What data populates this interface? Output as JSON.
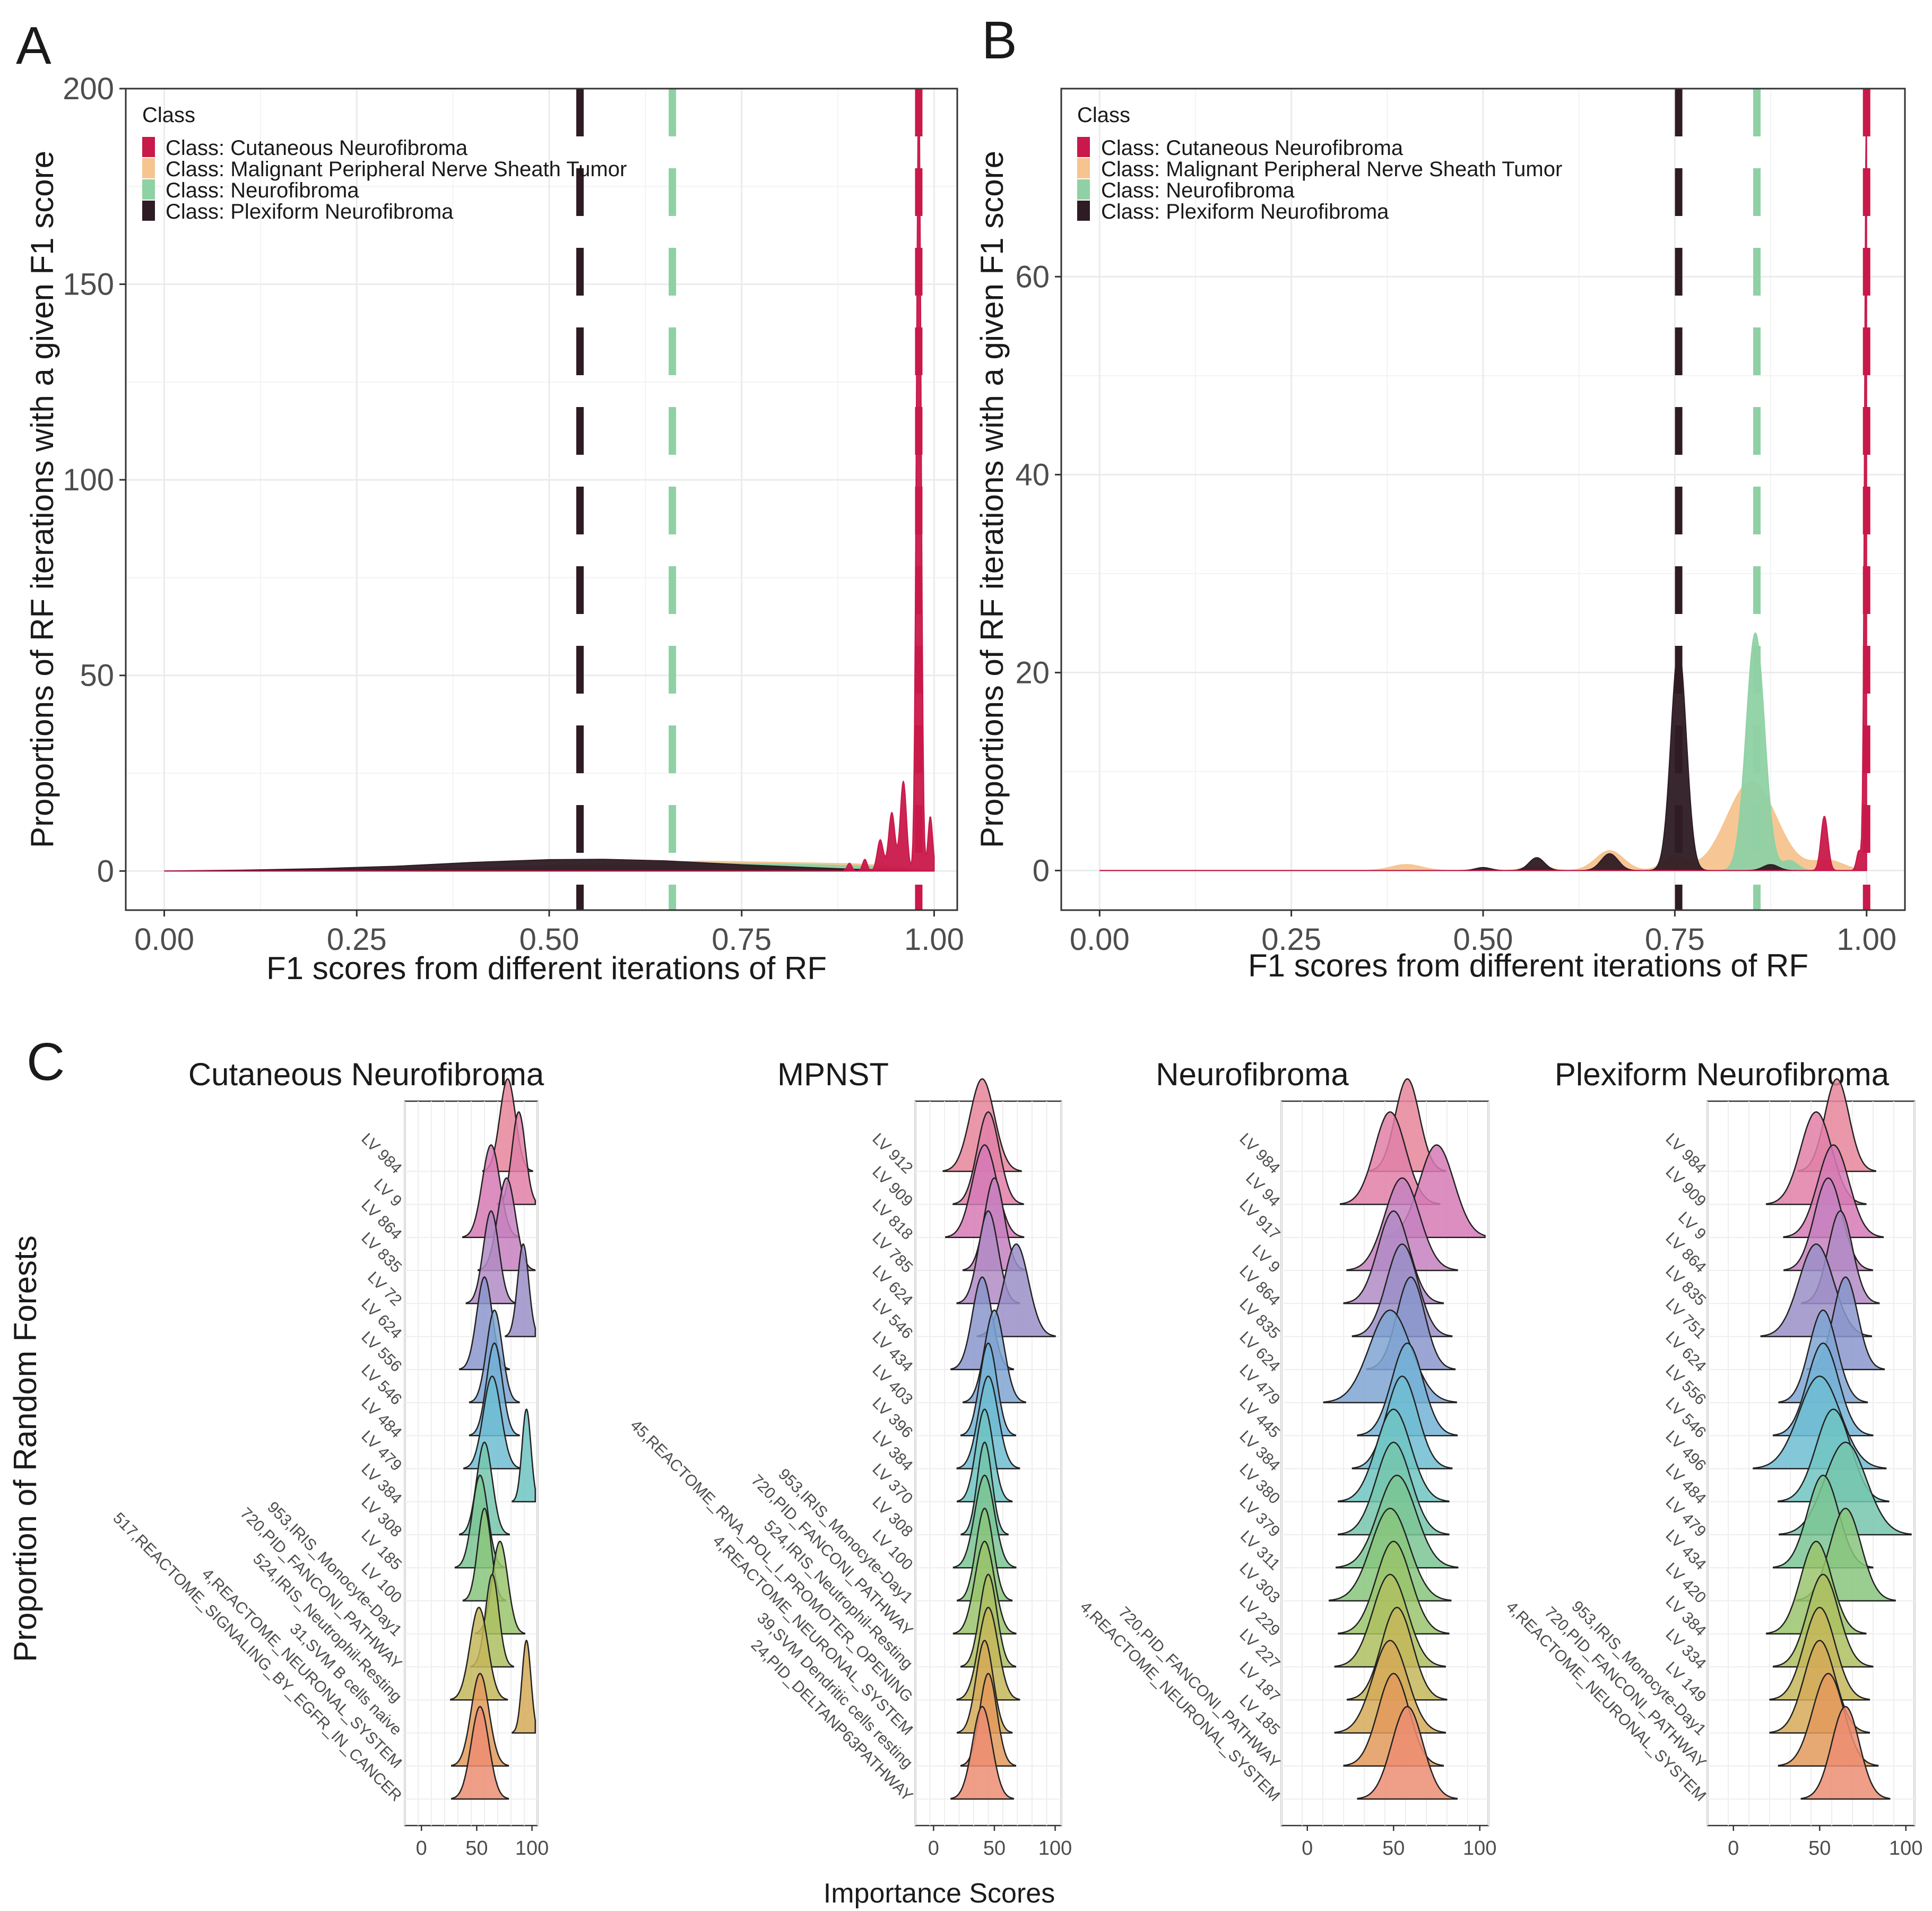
{
  "panel_labels": {
    "a": "A",
    "b": "B",
    "c": "C"
  },
  "colors": {
    "cutaneous": "#c9184a",
    "mpnst": "#f5c48f",
    "neurofibroma": "#8fd1a4",
    "plexiform": "#2e1b24",
    "grid": "#ebebeb",
    "axis_text": "#4d4d4d"
  },
  "panel_c": {
    "y_label": "Proportion of Random Forests",
    "x_label": "Importance Scores"
  },
  "chart_data": [
    {
      "id": "A",
      "type": "area",
      "title": "",
      "xlabel": "F1 scores from different iterations of RF",
      "ylabel": "Proportions of RF iterations with a given F1 score",
      "xlim": [
        -0.05,
        1.03
      ],
      "ylim": [
        -10,
        200
      ],
      "x_ticks": [
        "0.00",
        "0.25",
        "0.50",
        "0.75",
        "1.00"
      ],
      "x_tick_values": [
        0,
        0.25,
        0.5,
        0.75,
        1.0
      ],
      "y_ticks": [
        "0",
        "50",
        "100",
        "150",
        "200"
      ],
      "y_tick_values": [
        0,
        50,
        100,
        150,
        200
      ],
      "legend": {
        "title": "Class",
        "position": "top-left",
        "entries": [
          "Class: Cutaneous Neurofibroma",
          "Class: Malignant Peripheral Nerve Sheath Tumor",
          "Class: Neurofibroma",
          "Class: Plexiform Neurofibroma"
        ]
      },
      "series": [
        {
          "name": "Class: Malignant Peripheral Nerve Sheath Tumor",
          "color_key": "mpnst",
          "x": [
            0.0,
            0.2,
            0.4,
            0.55,
            0.7,
            0.8,
            0.9,
            0.95,
            1.0
          ],
          "y": [
            0,
            0.2,
            0.8,
            1.8,
            2.5,
            2.2,
            1.8,
            1.2,
            0
          ]
        },
        {
          "name": "Class: Neurofibroma",
          "color_key": "neurofibroma",
          "x": [
            0.0,
            0.2,
            0.4,
            0.55,
            0.7,
            0.8,
            0.9,
            0.95,
            1.0
          ],
          "y": [
            0,
            0.2,
            0.8,
            1.5,
            2.0,
            1.8,
            1.3,
            0.8,
            0
          ]
        },
        {
          "name": "Class: Plexiform Neurofibroma",
          "color_key": "plexiform",
          "x": [
            0.0,
            0.1,
            0.2,
            0.3,
            0.4,
            0.5,
            0.57,
            0.65,
            0.75,
            0.85,
            0.9,
            0.95,
            1.0
          ],
          "y": [
            0,
            0.2,
            0.6,
            1.2,
            2.2,
            2.9,
            3.0,
            2.6,
            1.6,
            0.8,
            0.4,
            0.2,
            0
          ]
        },
        {
          "name": "Class: Cutaneous Neurofibroma",
          "color_key": "cutaneous",
          "peaks": [
            [
              0.89,
              2,
              0.003
            ],
            [
              0.91,
              3,
              0.003
            ],
            [
              0.93,
              8,
              0.004
            ],
            [
              0.945,
              15,
              0.004
            ],
            [
              0.96,
              23,
              0.004
            ],
            [
              0.98,
              200,
              0.003
            ],
            [
              0.995,
              14,
              0.003
            ]
          ]
        }
      ],
      "vlines": [
        {
          "x": 0.54,
          "color_key": "plexiform"
        },
        {
          "x": 0.66,
          "color_key": "neurofibroma"
        },
        {
          "x": 0.98,
          "color_key": "cutaneous"
        }
      ]
    },
    {
      "id": "B",
      "type": "area",
      "title": "",
      "xlabel": "F1 scores from different iterations of RF",
      "ylabel": "Proportions of RF iterations with a given F1 score",
      "xlim": [
        -0.05,
        1.05
      ],
      "ylim": [
        -4,
        79
      ],
      "x_ticks": [
        "0.00",
        "0.25",
        "0.50",
        "0.75",
        "1.00"
      ],
      "x_tick_values": [
        0,
        0.25,
        0.5,
        0.75,
        1.0
      ],
      "y_ticks": [
        "0",
        "20",
        "40",
        "60"
      ],
      "y_tick_values": [
        0,
        20,
        40,
        60
      ],
      "legend": {
        "title": "Class",
        "position": "top-left",
        "entries": [
          "Class: Cutaneous Neurofibroma",
          "Class: Malignant Peripheral Nerve Sheath Tumor",
          "Class: Neurofibroma",
          "Class: Plexiform Neurofibroma"
        ]
      },
      "series": [
        {
          "name": "Class: Malignant Peripheral Nerve Sheath Tumor",
          "color_key": "mpnst",
          "peaks": [
            [
              0.4,
              0.6,
              0.02
            ],
            [
              0.57,
              0.6,
              0.015
            ],
            [
              0.665,
              2.0,
              0.018
            ],
            [
              0.75,
              1.5,
              0.015
            ],
            [
              0.85,
              9.0,
              0.032
            ],
            [
              0.95,
              1.0,
              0.02
            ]
          ]
        },
        {
          "name": "Class: Neurofibroma",
          "color_key": "neurofibroma",
          "peaks": [
            [
              0.855,
              24.0,
              0.012
            ],
            [
              0.9,
              1.0,
              0.01
            ]
          ]
        },
        {
          "name": "Class: Plexiform Neurofibroma",
          "color_key": "plexiform",
          "peaks": [
            [
              0.5,
              0.3,
              0.01
            ],
            [
              0.57,
              1.3,
              0.01
            ],
            [
              0.665,
              1.7,
              0.011
            ],
            [
              0.755,
              22.5,
              0.01
            ],
            [
              0.875,
              0.6,
              0.01
            ]
          ]
        },
        {
          "name": "Class: Cutaneous Neurofibroma",
          "color_key": "cutaneous",
          "peaks": [
            [
              0.945,
              5.5,
              0.0045
            ],
            [
              0.99,
              2.0,
              0.003
            ],
            [
              1.0,
              79,
              0.0025
            ]
          ]
        }
      ],
      "vlines": [
        {
          "x": 0.755,
          "color_key": "plexiform"
        },
        {
          "x": 0.857,
          "color_key": "neurofibroma"
        },
        {
          "x": 1.0,
          "color_key": "cutaneous"
        }
      ]
    },
    {
      "id": "C1",
      "type": "ridgeline",
      "title": "Cutaneous Neurofibroma",
      "xlabel": "Importance Scores",
      "ylabel": "Proportion of Random Forests",
      "xlim": [
        -15,
        105
      ],
      "x_ticks": [
        "0",
        "50",
        "100"
      ],
      "x_tick_values": [
        0,
        50,
        100
      ],
      "ridges": [
        {
          "label": "LV 984",
          "peak": 78,
          "sd": 7
        },
        {
          "label": "LV 9",
          "peak": 88,
          "sd": 6
        },
        {
          "label": "LV 864",
          "peak": 63,
          "sd": 8
        },
        {
          "label": "LV 835",
          "peak": 77,
          "sd": 8
        },
        {
          "label": "LV 72",
          "peak": 63,
          "sd": 7
        },
        {
          "label": "LV 624",
          "peak": 92,
          "sd": 5
        },
        {
          "label": "LV 556",
          "peak": 57,
          "sd": 7
        },
        {
          "label": "LV 546",
          "peak": 66,
          "sd": 7
        },
        {
          "label": "LV 484",
          "peak": 66,
          "sd": 7
        },
        {
          "label": "LV 479",
          "peak": 64,
          "sd": 8
        },
        {
          "label": "LV 384",
          "peak": 95,
          "sd": 4
        },
        {
          "label": "LV 308",
          "peak": 57,
          "sd": 7
        },
        {
          "label": "LV 185",
          "peak": 53,
          "sd": 7
        },
        {
          "label": "LV 100",
          "peak": 57,
          "sd": 6
        },
        {
          "label": "953,IRIS_Monocyte-Day1",
          "peak": 71,
          "sd": 7
        },
        {
          "label": "720,PID_FANCONI_PATHWAY",
          "peak": 64,
          "sd": 6
        },
        {
          "label": "524,IRIS_Neutrophil-Resting",
          "peak": 52,
          "sd": 8
        },
        {
          "label": "31,SVM B cells naive",
          "peak": 95,
          "sd": 4
        },
        {
          "label": "4,REACTOME_NEURONAL_SYSTEM",
          "peak": 53,
          "sd": 8
        },
        {
          "label": "517,REACTOME_SIGNALING_BY_EGFR_IN_CANCER",
          "peak": 53,
          "sd": 8
        }
      ]
    },
    {
      "id": "C2",
      "type": "ridgeline",
      "title": "MPNST",
      "xlabel": "Importance Scores",
      "ylabel": "Proportion of Random Forests",
      "xlim": [
        -15,
        105
      ],
      "x_ticks": [
        "0",
        "50",
        "100"
      ],
      "x_tick_values": [
        0,
        50,
        100
      ],
      "ridges": [
        {
          "label": "LV 912",
          "peak": 40,
          "sd": 10
        },
        {
          "label": "LV 909",
          "peak": 45,
          "sd": 9
        },
        {
          "label": "LV 818",
          "peak": 42,
          "sd": 10
        },
        {
          "label": "LV 785",
          "peak": 50,
          "sd": 8
        },
        {
          "label": "LV 624",
          "peak": 45,
          "sd": 8
        },
        {
          "label": "LV 546",
          "peak": 68,
          "sd": 10
        },
        {
          "label": "LV 434",
          "peak": 40,
          "sd": 8
        },
        {
          "label": "LV 403",
          "peak": 50,
          "sd": 8
        },
        {
          "label": "LV 396",
          "peak": 45,
          "sd": 7
        },
        {
          "label": "LV 384",
          "peak": 45,
          "sd": 8
        },
        {
          "label": "LV 370",
          "peak": 42,
          "sd": 7
        },
        {
          "label": "LV 308",
          "peak": 42,
          "sd": 6
        },
        {
          "label": "LV 100",
          "peak": 42,
          "sd": 8
        },
        {
          "label": "953,IRIS_Monocyte-Day1",
          "peak": 42,
          "sd": 7
        },
        {
          "label": "720,PID_FANCONI_PATHWAY",
          "peak": 42,
          "sd": 8
        },
        {
          "label": "524,IRIS_Neutrophil-Resting",
          "peak": 45,
          "sd": 7
        },
        {
          "label": "45,REACTOME_RNA_POL_I_PROMOTER_OPENING",
          "peak": 45,
          "sd": 8
        },
        {
          "label": "4,REACTOME_NEURONAL_SYSTEM",
          "peak": 42,
          "sd": 7
        },
        {
          "label": "39,SVM Dendritic cells resting",
          "peak": 45,
          "sd": 7
        },
        {
          "label": "24,PID_DELTANP63PATHWAY",
          "peak": 40,
          "sd": 8
        }
      ]
    },
    {
      "id": "C3",
      "type": "ridgeline",
      "title": "Neurofibroma",
      "xlabel": "Importance Scores",
      "ylabel": "Proportion of Random Forests",
      "xlim": [
        -15,
        105
      ],
      "x_ticks": [
        "0",
        "50",
        "100"
      ],
      "x_tick_values": [
        0,
        50,
        100
      ],
      "ridges": [
        {
          "label": "LV 984",
          "peak": 58,
          "sd": 7
        },
        {
          "label": "LV 94",
          "peak": 48,
          "sd": 9
        },
        {
          "label": "LV 917",
          "peak": 75,
          "sd": 10
        },
        {
          "label": "LV 9",
          "peak": 55,
          "sd": 10
        },
        {
          "label": "LV 864",
          "peak": 50,
          "sd": 9
        },
        {
          "label": "LV 835",
          "peak": 55,
          "sd": 9
        },
        {
          "label": "LV 624",
          "peak": 60,
          "sd": 8
        },
        {
          "label": "LV 479",
          "peak": 48,
          "sd": 12
        },
        {
          "label": "LV 445",
          "peak": 58,
          "sd": 9
        },
        {
          "label": "LV 384",
          "peak": 55,
          "sd": 9
        },
        {
          "label": "LV 380",
          "peak": 50,
          "sd": 10
        },
        {
          "label": "LV 379",
          "peak": 50,
          "sd": 10
        },
        {
          "label": "LV 311",
          "peak": 52,
          "sd": 11
        },
        {
          "label": "LV 303",
          "peak": 48,
          "sd": 11
        },
        {
          "label": "LV 229",
          "peak": 50,
          "sd": 10
        },
        {
          "label": "LV 227",
          "peak": 48,
          "sd": 10
        },
        {
          "label": "LV 187",
          "peak": 52,
          "sd": 9
        },
        {
          "label": "LV 185",
          "peak": 48,
          "sd": 10
        },
        {
          "label": "720,PID_FANCONI_PATHWAY",
          "peak": 50,
          "sd": 9
        },
        {
          "label": "4,REACTOME_NEURONAL_SYSTEM",
          "peak": 58,
          "sd": 9
        }
      ]
    },
    {
      "id": "C4",
      "type": "ridgeline",
      "title": "Plexiform Neurofibroma",
      "xlabel": "Importance Scores",
      "ylabel": "Proportion of Random Forests",
      "xlim": [
        -15,
        105
      ],
      "x_ticks": [
        "0",
        "50",
        "100"
      ],
      "x_tick_values": [
        0,
        50,
        100
      ],
      "ridges": [
        {
          "label": "LV 984",
          "peak": 60,
          "sd": 7
        },
        {
          "label": "LV 909",
          "peak": 48,
          "sd": 9
        },
        {
          "label": "LV 9",
          "peak": 58,
          "sd": 9
        },
        {
          "label": "LV 864",
          "peak": 55,
          "sd": 8
        },
        {
          "label": "LV 835",
          "peak": 62,
          "sd": 7
        },
        {
          "label": "LV 751",
          "peak": 48,
          "sd": 10
        },
        {
          "label": "LV 624",
          "peak": 65,
          "sd": 7
        },
        {
          "label": "LV 556",
          "peak": 52,
          "sd": 8
        },
        {
          "label": "LV 546",
          "peak": 52,
          "sd": 9
        },
        {
          "label": "LV 496",
          "peak": 50,
          "sd": 12
        },
        {
          "label": "LV 484",
          "peak": 58,
          "sd": 10
        },
        {
          "label": "LV 479",
          "peak": 65,
          "sd": 12
        },
        {
          "label": "LV 434",
          "peak": 52,
          "sd": 9
        },
        {
          "label": "LV 420",
          "peak": 65,
          "sd": 9
        },
        {
          "label": "LV 384",
          "peak": 48,
          "sd": 9
        },
        {
          "label": "LV 334",
          "peak": 52,
          "sd": 9
        },
        {
          "label": "LV 149",
          "peak": 50,
          "sd": 9
        },
        {
          "label": "953,IRIS_Monocyte-Day1",
          "peak": 50,
          "sd": 9
        },
        {
          "label": "720,PID_FANCONI_PATHWAY",
          "peak": 55,
          "sd": 9
        },
        {
          "label": "4,REACTOME_NEURONAL_SYSTEM",
          "peak": 65,
          "sd": 8
        }
      ]
    }
  ]
}
